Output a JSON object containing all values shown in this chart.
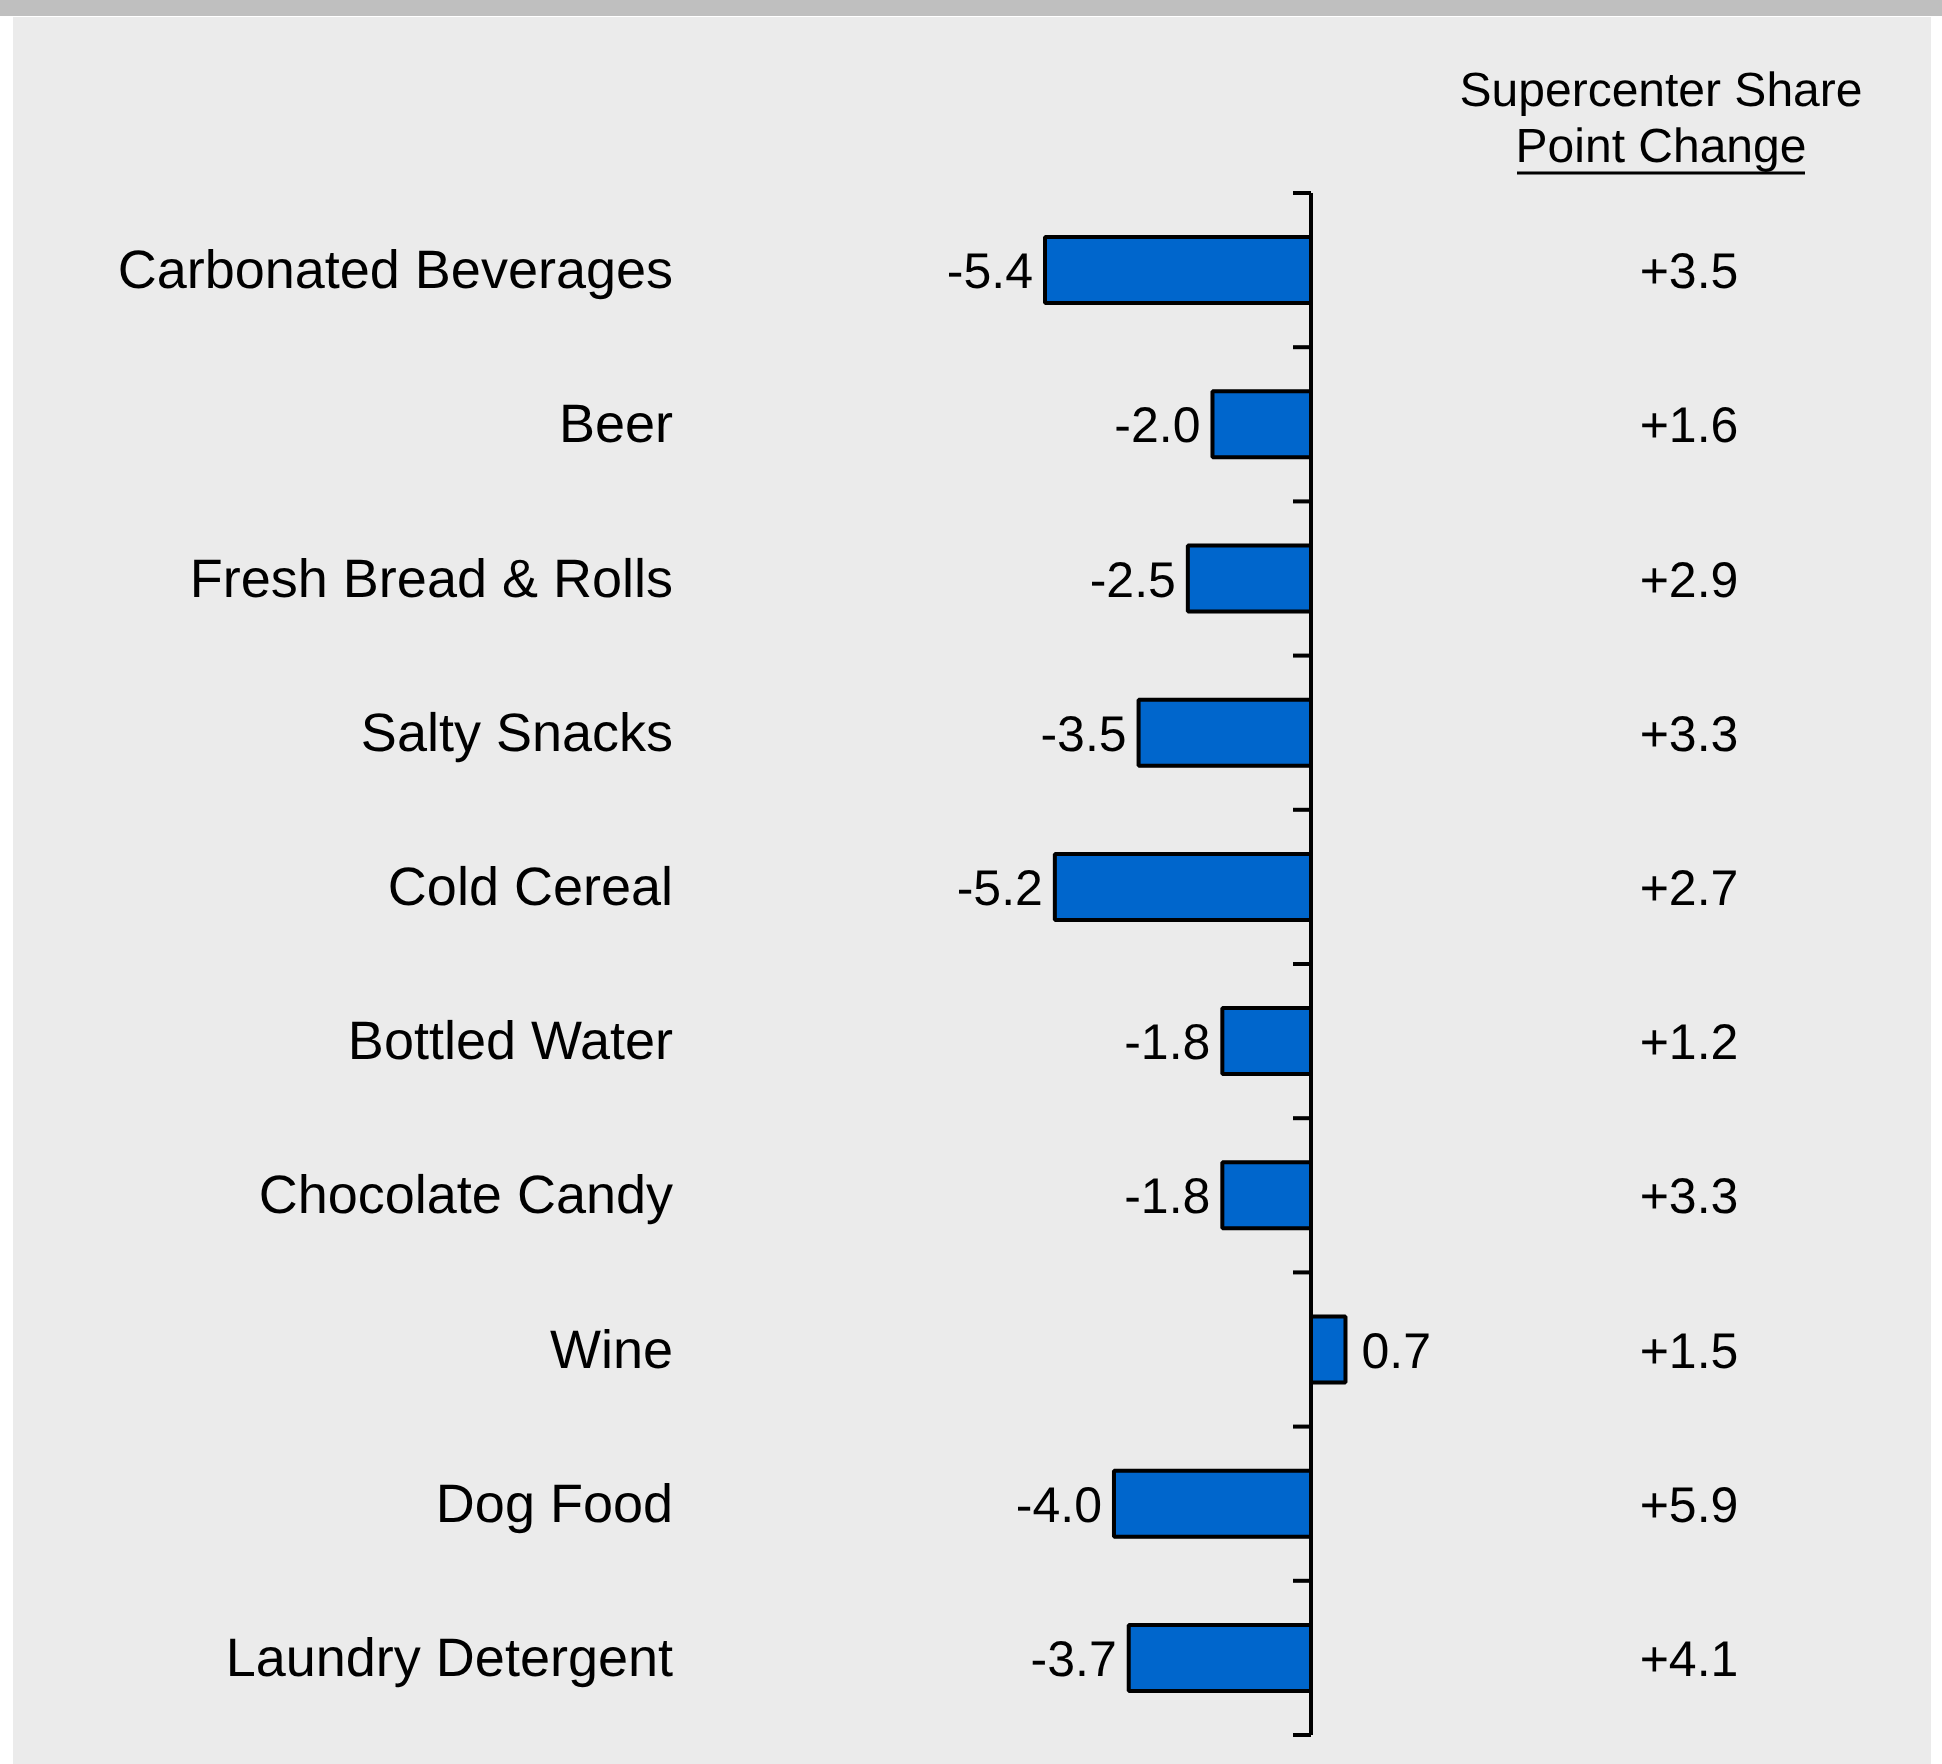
{
  "chart_data": {
    "type": "bar",
    "orientation": "horizontal",
    "categories": [
      "Carbonated Beverages",
      "Beer",
      "Fresh Bread & Rolls",
      "Salty Snacks",
      "Cold Cereal",
      "Bottled Water",
      "Chocolate Candy",
      "Wine",
      "Dog Food",
      "Laundry Detergent"
    ],
    "values": [
      -5.4,
      -2.0,
      -2.5,
      -3.5,
      -5.2,
      -1.8,
      -1.8,
      0.7,
      -4.0,
      -3.7
    ],
    "value_labels": [
      "-5.4",
      "-2.0",
      "-2.5",
      "-3.5",
      "-5.2",
      "-1.8",
      "-1.8",
      "0.7",
      "-4.0",
      "-3.7"
    ],
    "color": "#0066cc",
    "annotations": [
      "Supercenter Share\nPoint Change",
      "+3.5",
      "+1.6",
      "+2.9",
      "+3.3",
      "+2.7",
      "+1.2",
      "+3.3",
      "+1.5",
      "+5.9",
      "+4.1"
    ]
  }
}
